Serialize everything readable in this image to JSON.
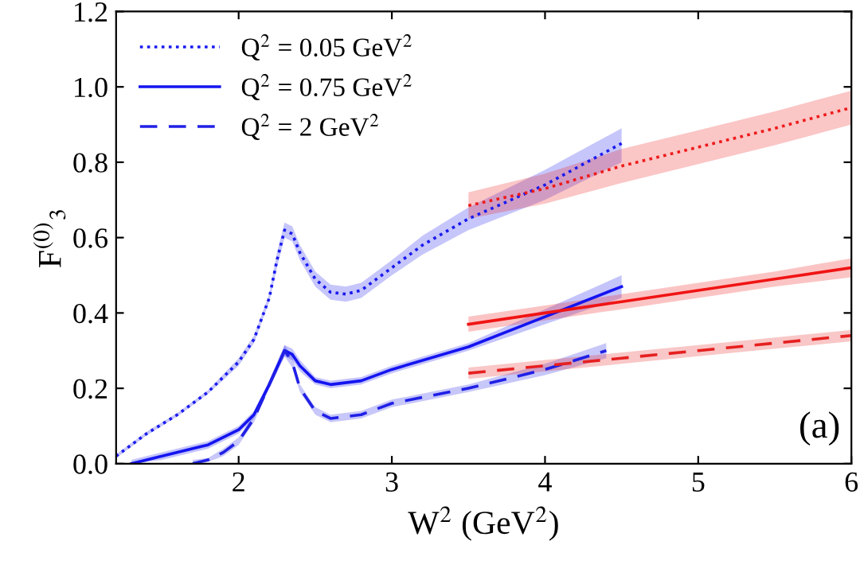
{
  "chart_data": {
    "type": "line",
    "xlabel": "W$^{2}$ (GeV$^{2}$)",
    "ylabel": "F$^{(0)}$$_{3}$",
    "xlim": [
      1.2,
      6
    ],
    "ylim": [
      0,
      1.2
    ],
    "xticks": [
      2,
      3,
      4,
      5,
      6
    ],
    "yticks": [
      {
        "value": 0,
        "label": "0.0"
      },
      {
        "value": 0.2,
        "label": "0.2"
      },
      {
        "value": 0.4,
        "label": "0.4"
      },
      {
        "value": 0.6,
        "label": "0.6"
      },
      {
        "value": 0.8,
        "label": "0.8"
      },
      {
        "value": 1.0,
        "label": "1.0"
      },
      {
        "value": 1.2,
        "label": "1.2"
      }
    ],
    "grid": false,
    "legend": "top left",
    "annotations": [
      "(a)"
    ],
    "series": [
      {
        "name": "Q$^{2}$ = 0.05 GeV$^{2}$",
        "color": "#1a1aee",
        "line_style": "dotted",
        "x": [
          1.2,
          1.4,
          1.6,
          1.8,
          2.0,
          2.1,
          2.2,
          2.25,
          2.3,
          2.35,
          2.4,
          2.5,
          2.6,
          2.7,
          2.8,
          3.0,
          3.2,
          3.5,
          4.0,
          4.5
        ],
        "values": [
          0.02,
          0.08,
          0.13,
          0.19,
          0.27,
          0.33,
          0.44,
          0.54,
          0.62,
          0.61,
          0.56,
          0.49,
          0.455,
          0.45,
          0.46,
          0.52,
          0.58,
          0.65,
          0.74,
          0.85
        ],
        "lower": [
          0.015,
          0.075,
          0.125,
          0.185,
          0.26,
          0.32,
          0.43,
          0.52,
          0.6,
          0.59,
          0.54,
          0.47,
          0.435,
          0.43,
          0.44,
          0.5,
          0.555,
          0.62,
          0.7,
          0.8
        ],
        "upper": [
          0.025,
          0.085,
          0.135,
          0.195,
          0.28,
          0.34,
          0.45,
          0.56,
          0.64,
          0.63,
          0.58,
          0.51,
          0.475,
          0.47,
          0.48,
          0.54,
          0.605,
          0.68,
          0.78,
          0.89
        ]
      },
      {
        "name": "Q$^{2}$ = 0.75 GeV$^{2}$",
        "color": "#1414f0",
        "line_style": "solid",
        "x": [
          1.3,
          1.5,
          1.8,
          2.0,
          2.1,
          2.2,
          2.3,
          2.35,
          2.4,
          2.5,
          2.6,
          2.8,
          3.0,
          3.5,
          4.0,
          4.5
        ],
        "values": [
          0,
          0.02,
          0.05,
          0.09,
          0.13,
          0.21,
          0.3,
          0.29,
          0.26,
          0.22,
          0.21,
          0.22,
          0.25,
          0.31,
          0.39,
          0.47
        ],
        "lower": [
          0,
          0.01,
          0.04,
          0.08,
          0.12,
          0.2,
          0.285,
          0.275,
          0.245,
          0.21,
          0.2,
          0.21,
          0.24,
          0.3,
          0.37,
          0.44
        ],
        "upper": [
          0.01,
          0.03,
          0.06,
          0.1,
          0.14,
          0.22,
          0.315,
          0.305,
          0.275,
          0.23,
          0.22,
          0.23,
          0.26,
          0.32,
          0.41,
          0.5
        ]
      },
      {
        "name": "Q$^{2}$ = 2 GeV$^{2}$",
        "color": "#2020e6",
        "line_style": "dashed",
        "x": [
          1.7,
          1.8,
          1.9,
          2.0,
          2.1,
          2.2,
          2.3,
          2.35,
          2.4,
          2.5,
          2.6,
          2.8,
          3.0,
          3.5,
          4.0,
          4.4
        ],
        "values": [
          0,
          0.01,
          0.03,
          0.06,
          0.12,
          0.21,
          0.3,
          0.27,
          0.2,
          0.14,
          0.12,
          0.13,
          0.16,
          0.2,
          0.25,
          0.3
        ],
        "lower": [
          0,
          0.005,
          0.02,
          0.05,
          0.11,
          0.2,
          0.285,
          0.255,
          0.19,
          0.13,
          0.11,
          0.12,
          0.15,
          0.19,
          0.235,
          0.28
        ],
        "upper": [
          0.01,
          0.015,
          0.04,
          0.07,
          0.13,
          0.22,
          0.315,
          0.285,
          0.21,
          0.15,
          0.13,
          0.14,
          0.17,
          0.21,
          0.265,
          0.32
        ]
      },
      {
        "color": "#ee1a1a",
        "line_style": "dotted",
        "x": [
          3.5,
          4.0,
          4.5,
          5.0,
          5.5,
          6.0
        ],
        "values": [
          0.685,
          0.73,
          0.79,
          0.84,
          0.89,
          0.945
        ],
        "lower": [
          0.65,
          0.69,
          0.745,
          0.795,
          0.845,
          0.9
        ],
        "upper": [
          0.72,
          0.77,
          0.835,
          0.885,
          0.935,
          0.99
        ]
      },
      {
        "color": "#f01414",
        "line_style": "solid",
        "x": [
          3.5,
          4.0,
          4.5,
          5.0,
          5.5,
          6.0
        ],
        "values": [
          0.37,
          0.4,
          0.43,
          0.46,
          0.49,
          0.52
        ],
        "lower": [
          0.35,
          0.38,
          0.41,
          0.44,
          0.47,
          0.495
        ],
        "upper": [
          0.39,
          0.42,
          0.45,
          0.48,
          0.51,
          0.545
        ]
      },
      {
        "color": "#e62020",
        "line_style": "dashed",
        "x": [
          3.5,
          4.0,
          4.5,
          5.0,
          5.5,
          6.0
        ],
        "values": [
          0.24,
          0.26,
          0.28,
          0.3,
          0.32,
          0.34
        ],
        "lower": [
          0.225,
          0.245,
          0.265,
          0.285,
          0.305,
          0.325
        ],
        "upper": [
          0.255,
          0.275,
          0.295,
          0.315,
          0.335,
          0.355
        ]
      }
    ]
  }
}
